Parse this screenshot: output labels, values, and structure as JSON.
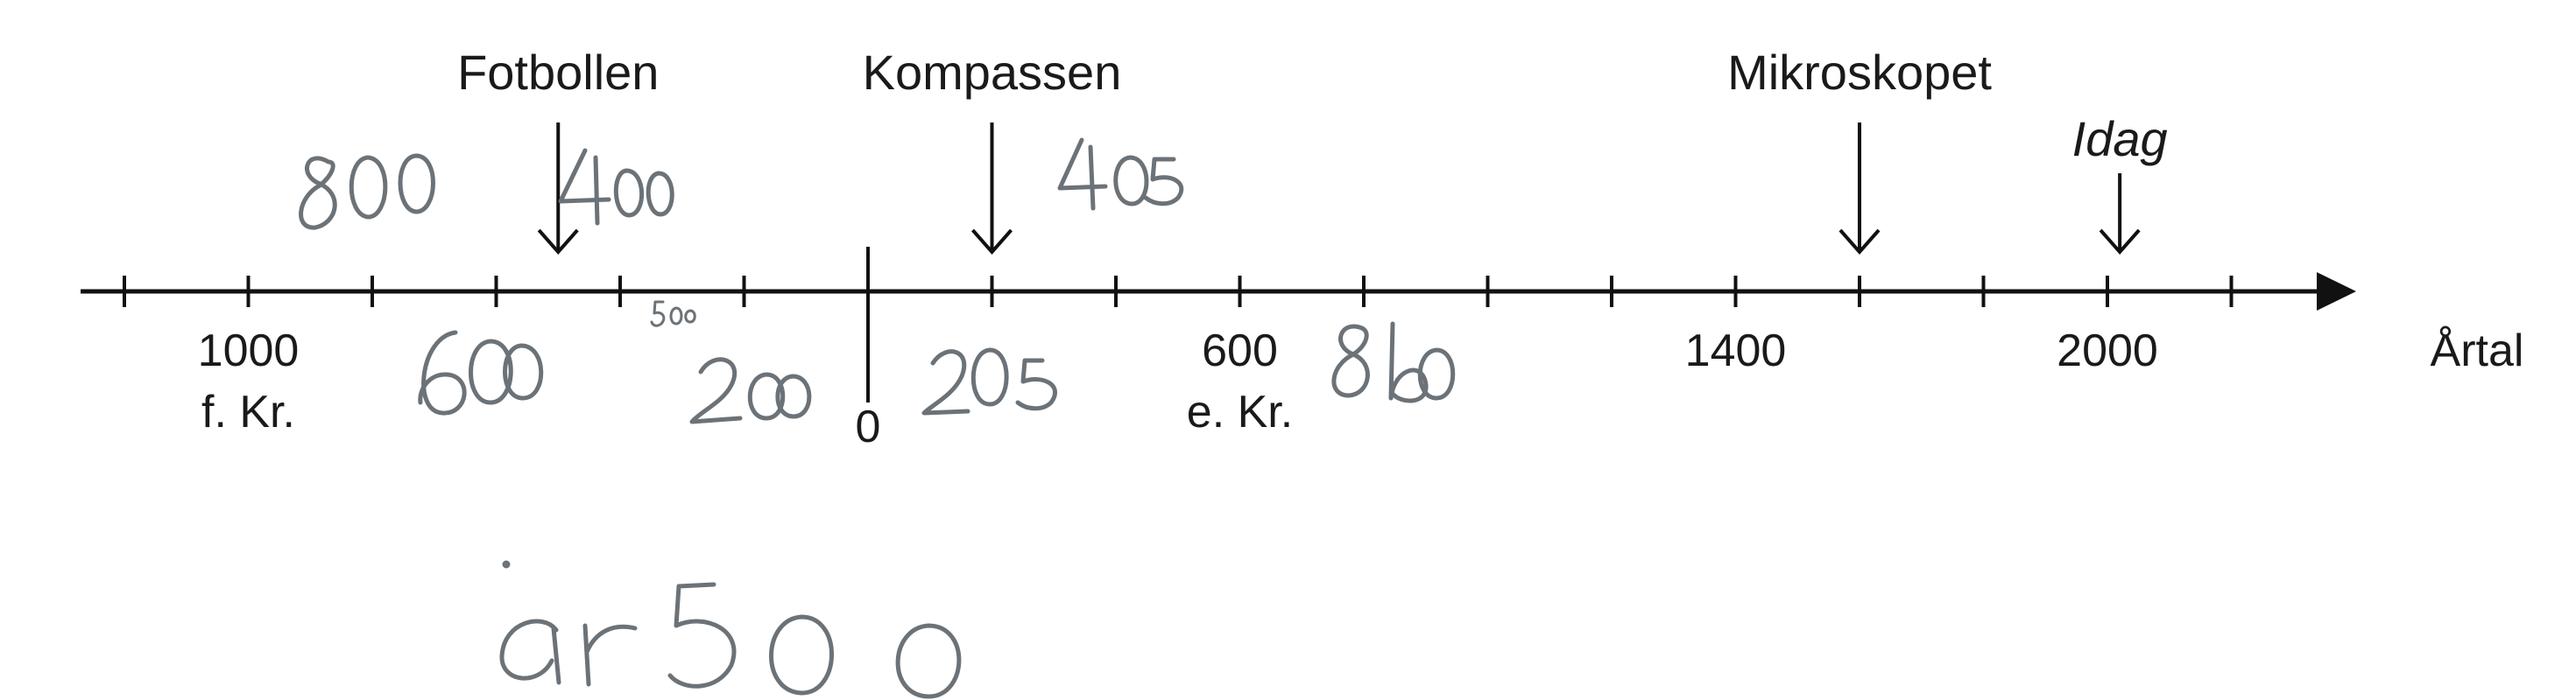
{
  "timeline": {
    "axis_label": "Årtal",
    "zero_label": "0",
    "year_labels": [
      {
        "year": -1000,
        "text": "1000",
        "sub": "f. Kr."
      },
      {
        "year": 600,
        "text": "600",
        "sub": "e. Kr."
      },
      {
        "year": 1400,
        "text": "1400",
        "sub": ""
      },
      {
        "year": 2000,
        "text": "2000",
        "sub": ""
      }
    ],
    "tick_years": [
      -1200,
      -1000,
      -800,
      -600,
      -400,
      -200,
      0,
      200,
      400,
      600,
      800,
      1000,
      1200,
      1400,
      1600,
      1800,
      2000,
      2200
    ],
    "events": [
      {
        "name": "Fotbollen",
        "year": -500,
        "italic": false
      },
      {
        "name": "Kompassen",
        "year": 200,
        "italic": false
      },
      {
        "name": "Mikroskopet",
        "year": 1600,
        "italic": false
      },
      {
        "name": "Idag",
        "year": 2020,
        "italic": true
      }
    ]
  },
  "handwriting": {
    "color": "#6b7278",
    "notes": [
      "800",
      "400",
      "600",
      "500",
      "200",
      "205",
      "405",
      "8b0",
      "år 500"
    ]
  }
}
